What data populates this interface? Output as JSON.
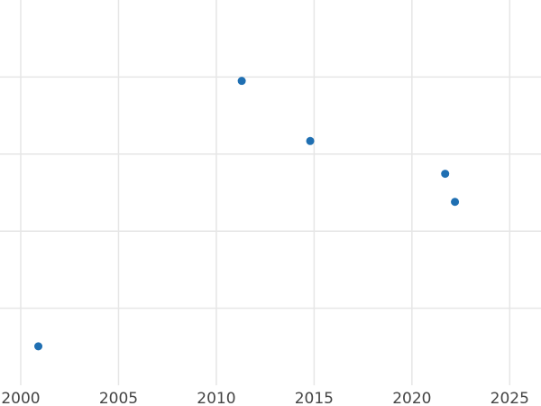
{
  "chart_data": {
    "type": "scatter",
    "title": "",
    "xlabel": "",
    "ylabel": "",
    "grid": true,
    "legend": "none",
    "xlim": [
      2000,
      2026.6
    ],
    "ylim": [
      0,
      100
    ],
    "x_ticks": [
      2000,
      2005,
      2010,
      2015,
      2020,
      2025
    ],
    "x_tick_labels": [
      "2000",
      "2005",
      "2010",
      "2015",
      "2020",
      "2025"
    ],
    "y_ticks": [
      20,
      40,
      60,
      80
    ],
    "y_tick_labels_visible": false,
    "point_color": "#1f6fb2",
    "points": [
      {
        "x": 2000.9,
        "y": 10.1
      },
      {
        "x": 2011.3,
        "y": 79.0
      },
      {
        "x": 2014.8,
        "y": 63.4
      },
      {
        "x": 2021.7,
        "y": 54.9
      },
      {
        "x": 2022.2,
        "y": 47.6
      }
    ]
  }
}
